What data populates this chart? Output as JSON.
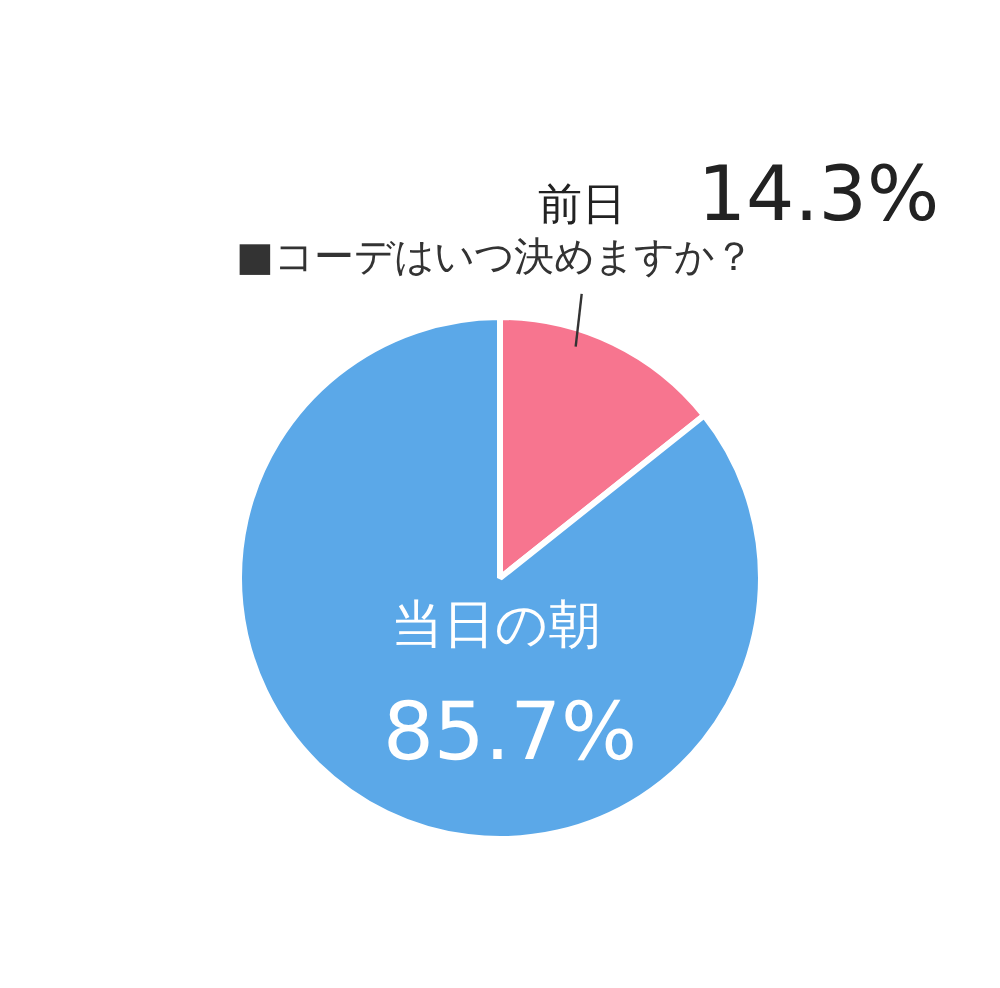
{
  "chart_data": {
    "type": "pie",
    "title": "■コーデはいつ決めますか？",
    "categories": [
      "前日",
      "当日の朝"
    ],
    "values": [
      14.3,
      85.7
    ],
    "colors": [
      "#f7758f",
      "#5ba8e8"
    ],
    "value_labels": [
      "14.3%",
      "85.7%"
    ],
    "legend": false
  }
}
